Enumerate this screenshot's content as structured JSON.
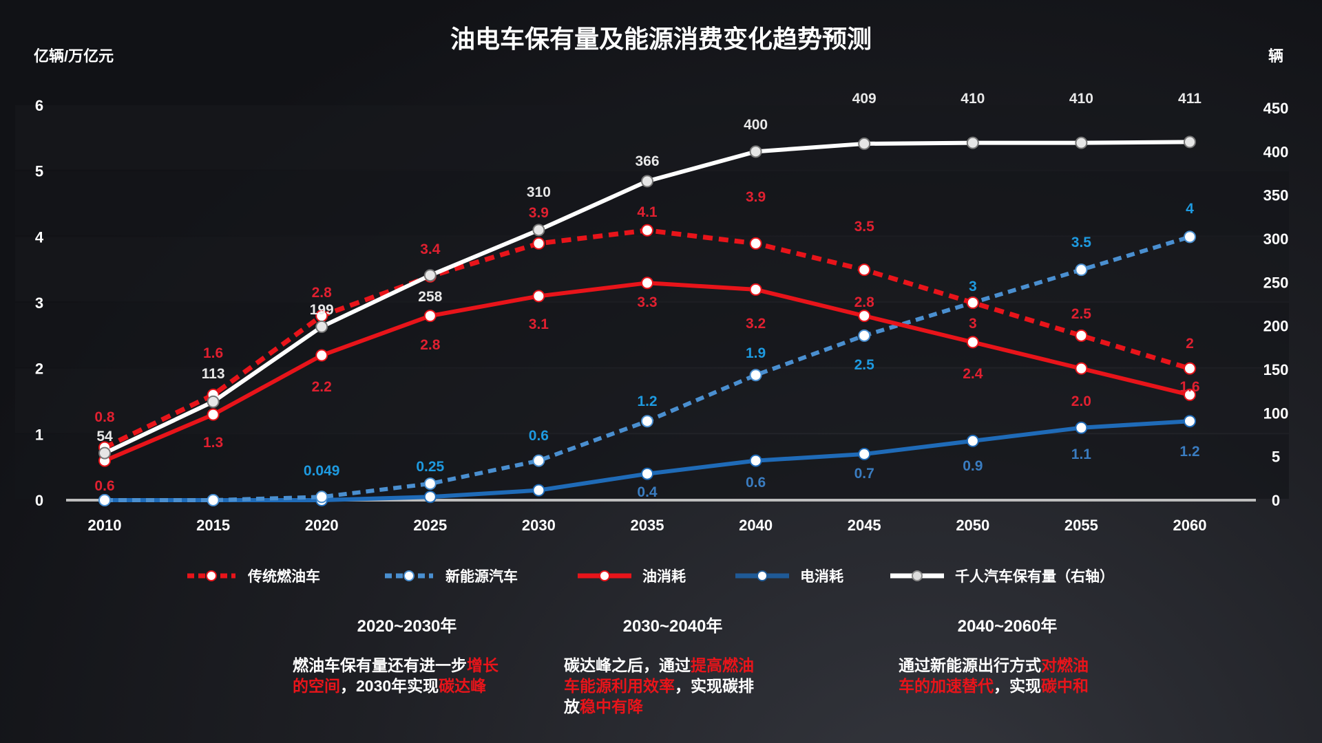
{
  "title": "油电车保有量及能源消费变化趋势预测",
  "left_unit": "亿辆/万亿元",
  "right_unit": "辆",
  "colors": {
    "gas": "#e8141a",
    "nev": "#4a8fd0",
    "oil": "#e8141a",
    "elec": "#1f6bb8",
    "cars": "#ffffff",
    "gas_label": "#e02030",
    "nev_label": "#1e9ae0",
    "elec_label": "#3a7cc0",
    "cars_label": "#e8e8e8"
  },
  "chart_data": {
    "type": "line",
    "title": "油电车保有量及能源消费变化趋势预测",
    "categories": [
      "2010",
      "2015",
      "2020",
      "2025",
      "2030",
      "2035",
      "2040",
      "2045",
      "2050",
      "2055",
      "2060"
    ],
    "ylabel": "亿辆/万亿元",
    "ylim": [
      0,
      6
    ],
    "yticks": [
      "0",
      "1",
      "2",
      "3",
      "4",
      "5",
      "6"
    ],
    "y2label": "辆",
    "y2lim": [
      0,
      450
    ],
    "y2ticks": [
      "0",
      "5",
      "100",
      "150",
      "200",
      "250",
      "300",
      "350",
      "400",
      "450"
    ],
    "legend_position": "bottom",
    "series": [
      {
        "key": "gas",
        "name": "传统燃油车",
        "axis": "left",
        "style": "dashed",
        "values": [
          0.8,
          1.6,
          2.8,
          3.4,
          3.9,
          4.1,
          3.9,
          3.5,
          3,
          2.5,
          2
        ],
        "labels": [
          "0.8",
          "1.6",
          "2.8",
          "3.4",
          "3.9",
          "4.1",
          "3.9",
          "3.5",
          "3",
          "2.5",
          "2"
        ]
      },
      {
        "key": "nev",
        "name": "新能源汽车",
        "axis": "left",
        "style": "dashed",
        "values": [
          0,
          0,
          0.049,
          0.25,
          0.6,
          1.2,
          1.9,
          2.5,
          3,
          3.5,
          4
        ],
        "labels": [
          "",
          "",
          "0.049",
          "0.25",
          "0.6",
          "1.2",
          "1.9",
          "2.5",
          "3",
          "3.5",
          "4"
        ]
      },
      {
        "key": "oil",
        "name": "油消耗",
        "axis": "left",
        "style": "solid",
        "values": [
          0.6,
          1.3,
          2.2,
          2.8,
          3.1,
          3.3,
          3.2,
          2.8,
          2.4,
          2.0,
          1.6
        ],
        "labels": [
          "0.6",
          "1.3",
          "2.2",
          "2.8",
          "3.1",
          "3.3",
          "3.2",
          "2.8",
          "2.4",
          "2.0",
          "1.6"
        ]
      },
      {
        "key": "elec",
        "name": "电消耗",
        "axis": "left",
        "style": "solid",
        "values": [
          0,
          0,
          0,
          0.05,
          0.15,
          0.4,
          0.6,
          0.7,
          0.9,
          1.1,
          1.2
        ],
        "labels": [
          "",
          "",
          "",
          "",
          "",
          "0.4",
          "0.6",
          "0.7",
          "0.9",
          "1.1",
          "1.2"
        ]
      },
      {
        "key": "cars",
        "name": "千人汽车保有量（右轴）",
        "axis": "right",
        "style": "solid",
        "values": [
          54,
          113,
          199,
          258,
          310,
          366,
          400,
          409,
          410,
          410,
          411
        ],
        "labels": [
          "54",
          "113",
          "199",
          "258",
          "310",
          "366",
          "400",
          "409",
          "410",
          "410",
          "411"
        ]
      }
    ]
  },
  "sections": [
    {
      "heading": "2020~2030年",
      "lines": [
        [
          {
            "t": "燃油车保有量还有进一步"
          },
          {
            "t": "增长",
            "hl": true
          }
        ],
        [
          {
            "t": "的空间",
            "hl": true
          },
          {
            "t": "，2030年实现"
          },
          {
            "t": "碳达峰",
            "hl": true
          }
        ]
      ]
    },
    {
      "heading": "2030~2040年",
      "lines": [
        [
          {
            "t": "碳达峰之后，通过"
          },
          {
            "t": "提高燃油",
            "hl": true
          }
        ],
        [
          {
            "t": "车能源利用效率",
            "hl": true
          },
          {
            "t": "，实现碳排"
          }
        ],
        [
          {
            "t": "放"
          },
          {
            "t": "稳中有降",
            "hl": true
          }
        ]
      ]
    },
    {
      "heading": "2040~2060年",
      "lines": [
        [
          {
            "t": "通过新能源出行方式"
          },
          {
            "t": "对燃油",
            "hl": true
          }
        ],
        [
          {
            "t": "车的加速替代",
            "hl": true
          },
          {
            "t": "，实现"
          },
          {
            "t": "碳中和",
            "hl": true
          }
        ]
      ]
    }
  ]
}
